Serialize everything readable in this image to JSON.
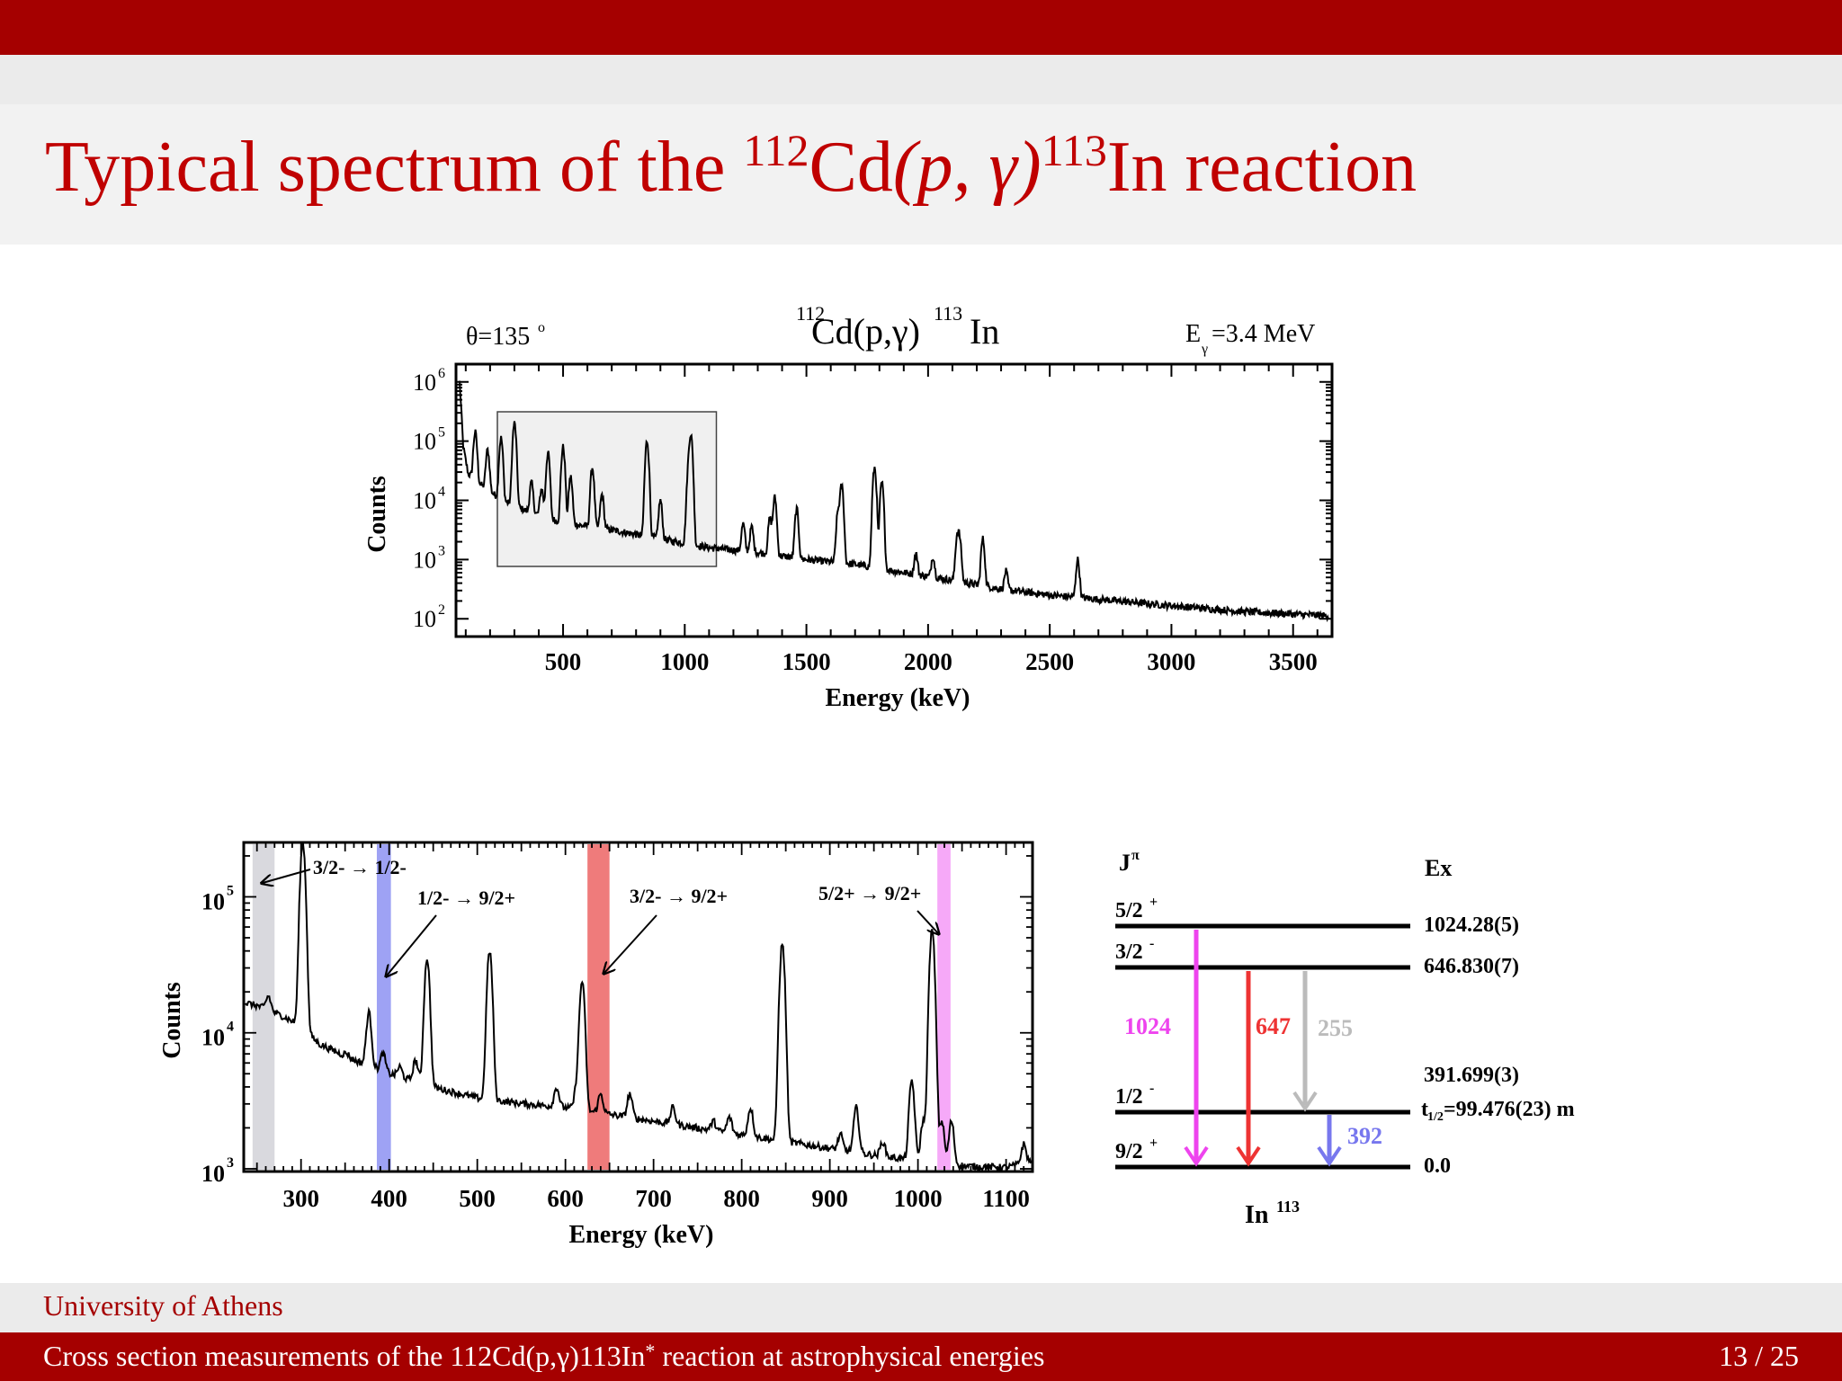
{
  "slide": {
    "title_text": "Typical spectrum of the",
    "title_iso_a": "112",
    "title_el_a": "Cd",
    "title_reaction": "(p, γ)",
    "title_iso_b": "113",
    "title_el_b": "In reaction",
    "footer_institution": "University of Athens",
    "footer_talk": "Cross section measurements of the 112Cd(p,γ)113In",
    "footer_talk_star": "*",
    "footer_talk_tail": " reaction at astrophysical energies",
    "page": "13 / 25"
  },
  "colors": {
    "bar": "#a50000",
    "title": "#c00000"
  },
  "chart_data": [
    {
      "type": "line",
      "title_iso_a": "112",
      "title_mid": "Cd(p,γ)",
      "title_iso_b": "113",
      "title_end": "In",
      "angle_label": "θ=135",
      "angle_unit": "o",
      "energy_label_a": "E",
      "energy_label_sub": "γ",
      "energy_label_b": "=3.4 MeV",
      "xlabel": "Energy (keV)",
      "ylabel": "Counts",
      "xticks": [
        500,
        1000,
        1500,
        2000,
        2500,
        3000,
        3500
      ],
      "ytick_labels": [
        "10",
        "10",
        "10",
        "10",
        "10"
      ],
      "ytick_exponents": [
        "6",
        "5",
        "4",
        "3",
        "2"
      ],
      "xlim": [
        60,
        3660
      ],
      "ylim_log10": [
        1.7,
        6.3
      ],
      "scale_y": "log",
      "zoom_box_keV": [
        230,
        1130
      ],
      "continuum": [
        [
          75,
          6.0
        ],
        [
          90,
          4.9
        ],
        [
          110,
          4.45
        ],
        [
          150,
          4.3
        ],
        [
          250,
          4.0
        ],
        [
          350,
          3.82
        ],
        [
          500,
          3.62
        ],
        [
          700,
          3.5
        ],
        [
          900,
          3.35
        ],
        [
          1100,
          3.2
        ],
        [
          1300,
          3.12
        ],
        [
          1500,
          3.0
        ],
        [
          1700,
          2.92
        ],
        [
          1900,
          2.78
        ],
        [
          2100,
          2.65
        ],
        [
          2300,
          2.5
        ],
        [
          2500,
          2.4
        ],
        [
          2700,
          2.33
        ],
        [
          3000,
          2.22
        ],
        [
          3300,
          2.12
        ],
        [
          3640,
          2.05
        ]
      ],
      "peaks": [
        [
          139,
          5.15
        ],
        [
          190,
          4.85
        ],
        [
          245,
          5.05
        ],
        [
          300,
          5.3
        ],
        [
          370,
          4.3
        ],
        [
          412,
          4.2
        ],
        [
          438,
          4.8
        ],
        [
          500,
          4.9
        ],
        [
          531,
          4.4
        ],
        [
          620,
          4.55
        ],
        [
          660,
          4.1
        ],
        [
          845,
          5.0
        ],
        [
          900,
          4.0
        ],
        [
          1015,
          4.4
        ],
        [
          1025,
          5.1
        ],
        [
          1240,
          3.6
        ],
        [
          1275,
          3.55
        ],
        [
          1350,
          3.7
        ],
        [
          1370,
          4.05
        ],
        [
          1460,
          3.85
        ],
        [
          1630,
          3.8
        ],
        [
          1645,
          4.25
        ],
        [
          1780,
          4.55
        ],
        [
          1810,
          4.3
        ],
        [
          1950,
          3.1
        ],
        [
          2020,
          3.05
        ],
        [
          2120,
          3.4
        ],
        [
          2130,
          3.3
        ],
        [
          2225,
          3.35
        ],
        [
          2320,
          2.8
        ],
        [
          2615,
          3.0
        ]
      ]
    },
    {
      "type": "line",
      "xlabel": "Energy (keV)",
      "ylabel": "Counts",
      "xticks": [
        300,
        400,
        500,
        600,
        700,
        800,
        900,
        1000,
        1100
      ],
      "ytick_labels": [
        "10",
        "10",
        "10"
      ],
      "ytick_exponents": [
        "5",
        "4",
        "3"
      ],
      "xlim": [
        235,
        1130
      ],
      "ylim_log10": [
        2.98,
        5.4
      ],
      "scale_y": "log",
      "bands": [
        {
          "from": 245,
          "to": 270,
          "color": "#d9d9de"
        },
        {
          "from": 386,
          "to": 402,
          "color": "#9ea2f4"
        },
        {
          "from": 625,
          "to": 650,
          "color": "#ef7b7b"
        },
        {
          "from": 1022,
          "to": 1037,
          "color": "#f6a9f8"
        }
      ],
      "annotations": [
        "3/2- → 1/2-",
        "1/2- → 9/2+",
        "3/2- → 9/2+",
        "5/2+ → 9/2+"
      ],
      "continuum": [
        [
          237,
          4.22
        ],
        [
          250,
          4.2
        ],
        [
          280,
          4.12
        ],
        [
          300,
          4.05
        ],
        [
          320,
          3.92
        ],
        [
          360,
          3.8
        ],
        [
          400,
          3.7
        ],
        [
          450,
          3.6
        ],
        [
          500,
          3.52
        ],
        [
          550,
          3.48
        ],
        [
          600,
          3.45
        ],
        [
          650,
          3.4
        ],
        [
          700,
          3.35
        ],
        [
          750,
          3.3
        ],
        [
          800,
          3.25
        ],
        [
          850,
          3.2
        ],
        [
          900,
          3.15
        ],
        [
          950,
          3.1
        ],
        [
          1000,
          3.06
        ],
        [
          1050,
          3.02
        ],
        [
          1100,
          3.01
        ],
        [
          1128,
          3.05
        ]
      ],
      "peaks": [
        [
          263,
          4.27
        ],
        [
          302,
          5.4
        ],
        [
          352,
          3.85
        ],
        [
          377,
          4.15
        ],
        [
          393,
          3.85
        ],
        [
          412,
          3.75
        ],
        [
          430,
          3.8
        ],
        [
          443,
          4.55
        ],
        [
          514,
          4.6
        ],
        [
          590,
          3.6
        ],
        [
          613,
          3.6
        ],
        [
          619,
          4.38
        ],
        [
          640,
          3.55
        ],
        [
          673,
          3.55
        ],
        [
          722,
          3.45
        ],
        [
          768,
          3.35
        ],
        [
          786,
          3.38
        ],
        [
          810,
          3.45
        ],
        [
          846,
          4.65
        ],
        [
          912,
          3.25
        ],
        [
          930,
          3.45
        ],
        [
          960,
          3.2
        ],
        [
          993,
          3.65
        ],
        [
          1006,
          3.35
        ],
        [
          1016,
          4.75
        ],
        [
          1027,
          3.35
        ],
        [
          1038,
          3.35
        ],
        [
          1120,
          3.18
        ]
      ]
    },
    {
      "type": "diagram",
      "header_left": "J",
      "header_left_sup": "π",
      "header_right": "Ex",
      "levels": [
        {
          "spin": "5/2",
          "parity": "+",
          "energy": "1024.28(5)"
        },
        {
          "spin": "3/2",
          "parity": "-",
          "energy": "646.830(7)"
        },
        {
          "spin": "1/2",
          "parity": "-",
          "energy": "391.699(3)",
          "halflife_t": "t",
          "halflife_sub": "1/2",
          "halflife_val": "=99.476(23) m"
        },
        {
          "spin": "9/2",
          "parity": "+",
          "energy": "0.0"
        }
      ],
      "transitions": [
        {
          "label": "1024",
          "color": "#ee44ee"
        },
        {
          "label": "647",
          "color": "#ee3333"
        },
        {
          "label": "255",
          "color": "#bbbbbb"
        },
        {
          "label": "392",
          "color": "#7777ee"
        }
      ],
      "nucleus_name": "In",
      "nucleus_mass": "113"
    }
  ]
}
